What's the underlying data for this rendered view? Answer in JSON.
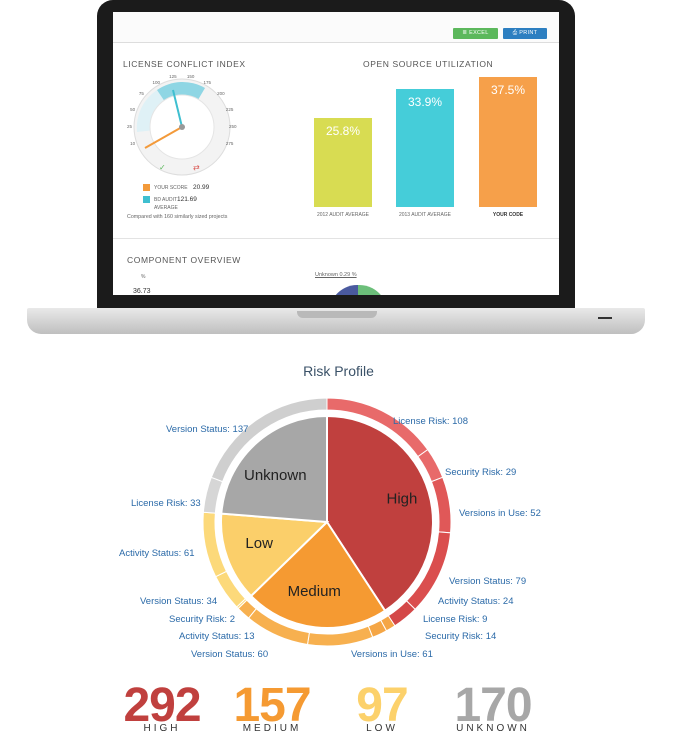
{
  "dashboard": {
    "excel_label": "≣ EXCEL",
    "print_label": "⎙ PRINT",
    "license_conflict": {
      "title": "LICENSE CONFLICT INDEX",
      "dial_ticks": [
        "10",
        "25",
        "50",
        "75",
        "100",
        "125",
        "150",
        "175",
        "200",
        "225",
        "250",
        "275"
      ],
      "your_score_label": "YOUR SCORE",
      "your_score_value": "20.99",
      "bd_audit_label": "BD AUDIT",
      "bd_audit_value": "121.69",
      "average_label": "AVERAGE",
      "compared_text": "Compared with 160 similarly sized projects"
    },
    "oss_utilization": {
      "title": "OPEN SOURCE UTILIZATION",
      "bars": [
        {
          "value": 25.8,
          "label": "25.8%",
          "caption": "2012 AUDIT AVERAGE",
          "color": "#d8dc52"
        },
        {
          "value": 33.9,
          "label": "33.9%",
          "caption": "2013 AUDIT AVERAGE",
          "color": "#45cdd9"
        },
        {
          "value": 37.5,
          "label": "37.5%",
          "caption": "YOUR CODE",
          "color": "#f6a04a"
        }
      ]
    },
    "component_overview": {
      "title": "COMPONENT OVERVIEW",
      "col_label": "%",
      "first_value": "36.73",
      "unknown_label": "Unknown 0.29 %"
    }
  },
  "risk_profile": {
    "title": "Risk Profile",
    "pie": [
      {
        "name": "High",
        "value": 292,
        "color": "#c0403e"
      },
      {
        "name": "Medium",
        "value": 157,
        "color": "#f59a32"
      },
      {
        "name": "Low",
        "value": 97,
        "color": "#fbcf6a"
      },
      {
        "name": "Unknown",
        "value": 170,
        "color": "#a7a7a7"
      }
    ],
    "ring": [
      {
        "label": "License Risk: 108",
        "value": 108,
        "color": "#e86a6a"
      },
      {
        "label": "Security Risk: 29",
        "value": 29,
        "color": "#e86a6a"
      },
      {
        "label": "Versions in Use: 52",
        "value": 52,
        "color": "#e05858"
      },
      {
        "label": "Version Status: 79",
        "value": 79,
        "color": "#da4e4e"
      },
      {
        "label": "Activity Status: 24",
        "value": 24,
        "color": "#d44848"
      },
      {
        "label": "License Risk: 9",
        "value": 9,
        "color": "#f5a645"
      },
      {
        "label": "Security Risk: 14",
        "value": 14,
        "color": "#f5a645"
      },
      {
        "label": "Versions in Use: 61",
        "value": 61,
        "color": "#f7b04f"
      },
      {
        "label": "Version Status: 60",
        "value": 60,
        "color": "#f7b04f"
      },
      {
        "label": "Activity Status: 13",
        "value": 13,
        "color": "#f7b04f"
      },
      {
        "label": "Security Risk: 2",
        "value": 2,
        "color": "#fcd97a"
      },
      {
        "label": "Version Status: 34",
        "value": 34,
        "color": "#fcd97a"
      },
      {
        "label": "Activity Status: 61",
        "value": 61,
        "color": "#fcd97a"
      },
      {
        "label": "License Risk: 33",
        "value": 33,
        "color": "#d6d6d6"
      },
      {
        "label": "Version Status: 137",
        "value": 137,
        "color": "#cfcfcf"
      }
    ],
    "stats": [
      {
        "value": "292",
        "label": "HIGH",
        "color": "#c0403e"
      },
      {
        "value": "157",
        "label": "MEDIUM",
        "color": "#f59a32"
      },
      {
        "value": "97",
        "label": "LOW",
        "color": "#fcd16b"
      },
      {
        "value": "170",
        "label": "UNKNOWN",
        "color": "#a7a7a7"
      }
    ]
  }
}
